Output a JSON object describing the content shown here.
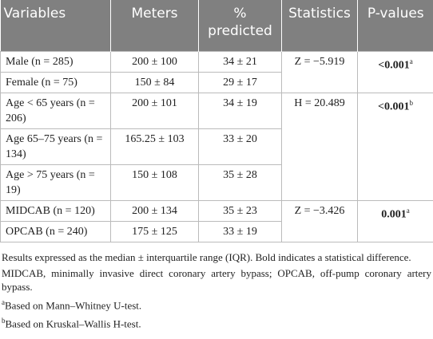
{
  "table": {
    "header": [
      "Variables",
      "Meters",
      "% predicted",
      "Statistics",
      "P-values"
    ],
    "rows": [
      [
        "Male (n = 285)",
        "200 ± 100",
        "34 ± 21"
      ],
      [
        "Female (n = 75)",
        "150 ± 84",
        "29 ± 17"
      ],
      [
        "Age < 65 years (n = 206)",
        "200 ± 101",
        "34 ± 19"
      ],
      [
        "Age 65–75 years (n = 134)",
        "165.25 ± 103",
        "33 ± 20"
      ],
      [
        "Age > 75 years (n = 19)",
        "150 ± 108",
        "35 ± 28"
      ],
      [
        "MIDCAB (n = 120)",
        "200 ± 134",
        "35 ± 23"
      ],
      [
        "OPCAB (n = 240)",
        "175 ± 125",
        "33 ± 19"
      ]
    ],
    "groups": [
      {
        "statistic": "Z = −5.919",
        "p_value": "<0.001",
        "note": "a"
      },
      {
        "statistic": "H = 20.489",
        "p_value": "<0.001",
        "note": "b"
      },
      {
        "statistic": "Z = −3.426",
        "p_value": "0.001",
        "note": "a"
      }
    ]
  },
  "footnotes": {
    "lines": [
      "Results expressed as the median ± interquartile range (IQR). Bold indicates a statistical difference.",
      "MIDCAB, minimally invasive direct coronary artery bypass; OPCAB, off-pump coronary artery bypass."
    ],
    "notes": [
      {
        "marker": "a",
        "text": "Based on Mann–Whitney U-test."
      },
      {
        "marker": "b",
        "text": "Based on Kruskal–Wallis H-test."
      }
    ]
  }
}
